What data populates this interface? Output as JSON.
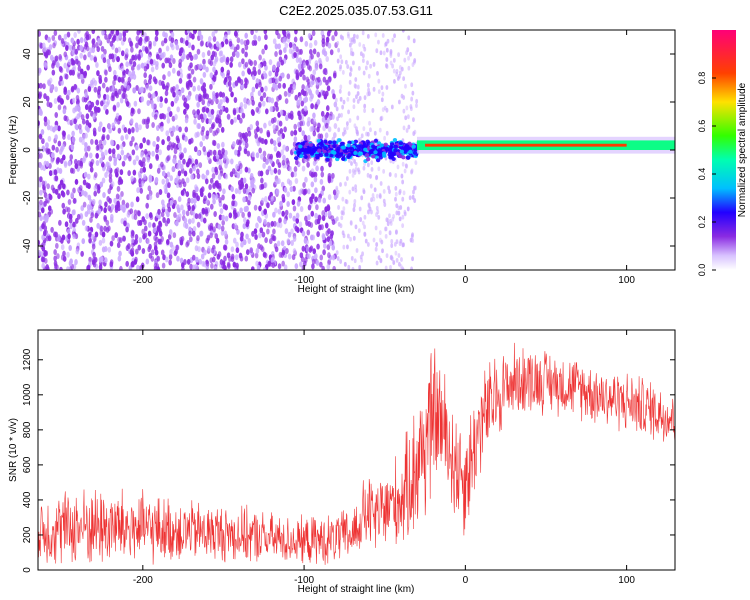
{
  "figure": {
    "title": "C2E2.2025.035.07.53.G11"
  },
  "chart_data": [
    {
      "type": "heatmap",
      "xlabel": "Height of straight line (km)",
      "ylabel": "Frequency (Hz)",
      "xlim": [
        -265,
        130
      ],
      "ylim": [
        -50,
        50
      ],
      "xticks": [
        -200,
        -100,
        0,
        100
      ],
      "xtick_labels": [
        "-200",
        "-100",
        "0",
        "100"
      ],
      "yticks": [
        -40,
        -20,
        0,
        20,
        40
      ],
      "ytick_labels": [
        "-40",
        "-20",
        "0",
        "20",
        "40"
      ],
      "colorbar": {
        "label": "Normalized spectral amplitude",
        "range": [
          0.0,
          1.0
        ],
        "ticks": [
          0.0,
          0.2,
          0.4,
          0.6,
          0.8
        ],
        "tick_labels": [
          "0.0",
          "0.2",
          "0.4",
          "0.6",
          "0.8"
        ],
        "colormap": [
          "#ffffff",
          "#c9a6ff",
          "#8a2be2",
          "#2200ff",
          "#00bfff",
          "#00ff7f",
          "#7fff00",
          "#ffd400",
          "#ff3b00",
          "#ff0066"
        ]
      },
      "features": [
        {
          "region": [
            -265,
            -80
          ],
          "description_level": 0.12,
          "spread_hz": 50
        },
        {
          "region": [
            -80,
            -30
          ],
          "description_level": 0.05,
          "spread_hz": 50
        },
        {
          "region": [
            -105,
            -30
          ],
          "band_center_hz": 0,
          "band_halfwidth_hz": 5,
          "level": 0.25
        },
        {
          "region": [
            -30,
            130
          ],
          "band_center_hz": 2,
          "band_halfwidth_hz": 2,
          "level": 0.55
        },
        {
          "region": [
            -25,
            100
          ],
          "band_center_hz": 2,
          "band_halfwidth_hz": 0.6,
          "level": 0.9
        }
      ],
      "grid": false
    },
    {
      "type": "line",
      "xlabel": "Height of straight line (km)",
      "ylabel": "SNR (10 * v/v)",
      "xlim": [
        -265,
        130
      ],
      "ylim": [
        0,
        1370
      ],
      "xticks": [
        -200,
        -100,
        0,
        100
      ],
      "xtick_labels": [
        "-200",
        "-100",
        "0",
        "100"
      ],
      "yticks": [
        0,
        200,
        400,
        600,
        800,
        1000,
        1200
      ],
      "ytick_labels": [
        "0",
        "200",
        "400",
        "600",
        "800",
        "1000",
        "1200"
      ],
      "color": "#ee3333",
      "series": [
        {
          "x": [
            -265,
            -250,
            -230,
            -210,
            -190,
            -170,
            -150,
            -130,
            -110,
            -100,
            -85,
            -70,
            -62,
            -55,
            -45,
            -38,
            -32,
            -28,
            -26,
            -22,
            -18,
            -12,
            -6,
            0,
            10,
            20,
            30,
            40,
            50,
            60,
            70,
            80,
            90,
            100,
            110,
            120,
            130
          ],
          "mean": [
            220,
            240,
            250,
            240,
            230,
            220,
            210,
            190,
            170,
            165,
            170,
            200,
            330,
            300,
            380,
            420,
            560,
            650,
            700,
            800,
            900,
            750,
            600,
            520,
            850,
            1000,
            1080,
            1090,
            1080,
            1060,
            1040,
            1010,
            980,
            960,
            930,
            900,
            870
          ],
          "spread": [
            200,
            220,
            240,
            230,
            200,
            180,
            170,
            160,
            140,
            140,
            150,
            160,
            220,
            230,
            260,
            300,
            400,
            450,
            500,
            480,
            400,
            380,
            360,
            350,
            300,
            260,
            220,
            200,
            190,
            180,
            180,
            180,
            180,
            180,
            180,
            180,
            180
          ]
        }
      ],
      "grid": false
    }
  ]
}
